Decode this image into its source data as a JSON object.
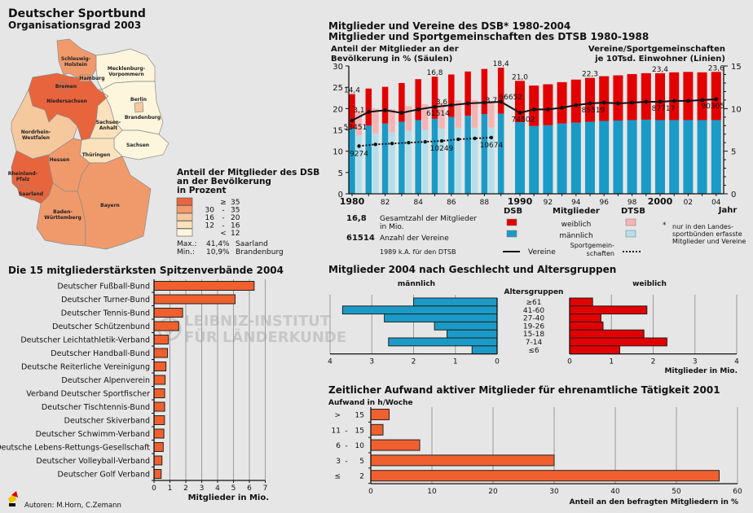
{
  "map": {
    "title": "Deutscher Sportbund",
    "subtitle": "Organisationsgrad 2003",
    "legend_title": [
      "Anteil der Mitglieder des DSB",
      "an der Bevölkerung",
      "in Prozent"
    ],
    "classes": [
      {
        "range_low": "",
        "sep": "≥",
        "range_high": "35",
        "color": "#e8643c"
      },
      {
        "range_low": "30",
        "sep": "-",
        "range_high": "35",
        "color": "#f09a6c"
      },
      {
        "range_low": "16",
        "sep": "-",
        "range_high": "20",
        "color": "#f6c89e"
      },
      {
        "range_low": "12",
        "sep": "-",
        "range_high": "16",
        "color": "#fbe2bd"
      },
      {
        "range_low": "",
        "sep": "<",
        "range_high": "12",
        "color": "#fdf6dc"
      }
    ],
    "max_label": "Max.:",
    "max_value": "41,4%",
    "max_state": "Saarland",
    "min_label": "Min.:",
    "min_value": "10,9%",
    "min_state": "Brandenburg",
    "states": [
      {
        "name": "Schleswig-Holstein",
        "label": [
          "Schleswig-",
          "Holstein"
        ],
        "class": 1
      },
      {
        "name": "Hamburg",
        "label": [
          "Hamburg"
        ],
        "class": 1
      },
      {
        "name": "Bremen",
        "label": [
          "Bremen"
        ],
        "class": 0
      },
      {
        "name": "Niedersachsen",
        "label": [
          "Niedersachsen"
        ],
        "class": 0
      },
      {
        "name": "Mecklenburg-Vorpommern",
        "label": [
          "Mecklenburg-",
          "Vorpommern"
        ],
        "class": 4
      },
      {
        "name": "Berlin",
        "label": [
          "Berlin"
        ],
        "class": 2
      },
      {
        "name": "Brandenburg",
        "label": [
          "Brandenburg"
        ],
        "class": 4
      },
      {
        "name": "Sachsen-Anhalt",
        "label": [
          "Sachsen-",
          "Anhalt"
        ],
        "class": 3
      },
      {
        "name": "Sachsen",
        "label": [
          "Sachsen"
        ],
        "class": 4
      },
      {
        "name": "Thüringen",
        "label": [
          "Thüringen"
        ],
        "class": 3
      },
      {
        "name": "Nordrhein-Westfalen",
        "label": [
          "Nordrhein-",
          "Westfalen"
        ],
        "class": 2
      },
      {
        "name": "Hessen",
        "label": [
          "Hessen"
        ],
        "class": 1
      },
      {
        "name": "Rheinland-Pfalz",
        "label": [
          "Rheinland-",
          "Pfalz"
        ],
        "class": 0
      },
      {
        "name": "Saarland",
        "label": [
          "Saarland"
        ],
        "class": 0
      },
      {
        "name": "Baden-Württemberg",
        "label": [
          "Baden-",
          "Württemberg"
        ],
        "class": 1
      },
      {
        "name": "Bayern",
        "label": [
          "Bayern"
        ],
        "class": 1
      }
    ]
  },
  "watermark": {
    "line1": "LEIBNIZ-INSTITUT",
    "line2": "FÜR LÄNDERKUNDE",
    "symbol": "©"
  },
  "footer": {
    "authors": "Autoren: M.Horn, C.Zemann",
    "logo_icon": "ifl-logo-icon"
  },
  "chart_data": [
    {
      "id": "members_clubs",
      "type": "bar",
      "title": [
        "Mitglieder und Vereine des DSB* 1980-2004",
        "Mitglieder und Sportgemeinschaften des DTSB 1980-1988"
      ],
      "ylabel_left": [
        "Anteil der Mitglieder an der",
        "Bevölkerung in % (Säulen)"
      ],
      "ylabel_right": [
        "Vereine/Sportgemeinschaften",
        "je 10Tsd. Einwohner (Linien)"
      ],
      "xlabel": "Jahr",
      "ylim_left": [
        0,
        30
      ],
      "yticks_left": [
        0,
        5,
        10,
        15,
        20,
        25,
        30
      ],
      "ylim_right": [
        0,
        15
      ],
      "yticks_right": [
        0,
        5,
        10,
        15
      ],
      "xtick_labels": [
        {
          "year": 1980,
          "text": "1980",
          "bold": true
        },
        {
          "year": 1982,
          "text": "82"
        },
        {
          "year": 1984,
          "text": "84"
        },
        {
          "year": 1986,
          "text": "86"
        },
        {
          "year": 1988,
          "text": "88"
        },
        {
          "year": 1990,
          "text": "1990",
          "bold": true
        },
        {
          "year": 1992,
          "text": "92"
        },
        {
          "year": 1994,
          "text": "94"
        },
        {
          "year": 1996,
          "text": "96"
        },
        {
          "year": 1998,
          "text": "98"
        },
        {
          "year": 2000,
          "text": "2000",
          "bold": true
        },
        {
          "year": 2002,
          "text": "02"
        },
        {
          "year": 2004,
          "text": "04"
        }
      ],
      "colors": {
        "dsb_female": "#e30000",
        "dsb_male": "#1a9bc7",
        "dtsb_female": "#f5b4b4",
        "dtsb_male": "#b4dfea"
      },
      "dsb": {
        "years": [
          1980,
          1981,
          1982,
          1983,
          1984,
          1985,
          1986,
          1987,
          1988,
          1989,
          1990,
          1991,
          1992,
          1993,
          1994,
          1995,
          1996,
          1997,
          1998,
          1999,
          2000,
          2001,
          2002,
          2003,
          2004
        ],
        "male_pct": [
          15.3,
          16.0,
          16.5,
          16.9,
          17.3,
          17.6,
          18.0,
          18.3,
          18.7,
          18.8,
          16.8,
          15.9,
          16.1,
          16.5,
          16.7,
          16.9,
          17.1,
          17.2,
          17.3,
          17.4,
          17.3,
          17.3,
          17.3,
          17.3,
          17.3
        ],
        "total_pct": [
          23.4,
          24.7,
          25.1,
          26.0,
          26.9,
          27.5,
          28.0,
          28.7,
          29.3,
          29.6,
          26.5,
          25.4,
          25.7,
          26.2,
          26.8,
          27.2,
          27.6,
          27.8,
          28.1,
          28.3,
          28.3,
          28.5,
          28.6,
          28.5,
          28.6
        ],
        "clubs_per_10k": [
          8.6,
          9.6,
          9.8,
          9.5,
          9.9,
          10.2,
          10.4,
          10.6,
          10.7,
          10.8,
          9.5,
          9.9,
          9.9,
          10.1,
          10.4,
          10.6,
          10.7,
          10.6,
          10.7,
          10.8,
          10.8,
          10.9,
          10.9,
          11.0,
          11.1
        ]
      },
      "dtsb": {
        "years": [
          1980,
          1981,
          1982,
          1983,
          1984,
          1985,
          1986,
          1987,
          1988
        ],
        "male_pct": [
          13.7,
          14.1,
          14.4,
          14.8,
          15.0,
          15.3,
          15.5,
          15.5,
          15.5
        ],
        "total_pct": [
          19.5,
          20.0,
          19.9,
          20.6,
          21.0,
          21.4,
          21.9,
          22.0,
          21.8
        ],
        "sg_per_10k": [
          5.6,
          5.8,
          5.9,
          6.0,
          6.1,
          6.2,
          6.4,
          6.5,
          6.6
        ]
      },
      "annotations": {
        "dsb_members_mio": [
          {
            "year": 1980,
            "text": "14,4"
          },
          {
            "year": 1985,
            "text": "16,8"
          },
          {
            "year": 1989,
            "text": "18,4"
          },
          {
            "year": 1990,
            "text": "21,0"
          },
          {
            "year": 1995,
            "text": "22,3"
          },
          {
            "year": 2000,
            "text": "23,4"
          },
          {
            "year": 2004,
            "text": "23,6"
          }
        ],
        "dtsb_members_mio": [
          {
            "year": 1980,
            "text": "3,1"
          },
          {
            "year": 1985,
            "text": "3,6"
          },
          {
            "year": 1988,
            "text": "3,7"
          }
        ],
        "dsb_clubs": [
          {
            "year": 1980,
            "text": "53451"
          },
          {
            "year": 1985,
            "text": "61514"
          },
          {
            "year": 1989,
            "text": "66652"
          },
          {
            "year": 1990,
            "text": "74802"
          },
          {
            "year": 1995,
            "text": "85519"
          },
          {
            "year": 2000,
            "text": "87717"
          },
          {
            "year": 2004,
            "text": "90305"
          }
        ],
        "dtsb_sg": [
          {
            "year": 1980,
            "text": "9274"
          },
          {
            "year": 1985,
            "text": "10249"
          },
          {
            "year": 1988,
            "text": "10674"
          }
        ]
      },
      "legend": {
        "example_members": "16,8",
        "example_members_text": [
          "Gesamtzahl der Mitglieder",
          "in Mio."
        ],
        "example_clubs": "61514",
        "example_clubs_text": "Anzahl der Vereine",
        "note_1989": "1989 k.A. für den DTSB",
        "dsb": "DSB",
        "members": "Mitglieder",
        "dtsb": "DTSB",
        "female": "weiblich",
        "male": "männlich",
        "clubs_line": "Vereine",
        "sg_line": [
          "Sportgemein-",
          "schaften"
        ],
        "footnote_mark": "*",
        "footnote": [
          "nur in den Landes-",
          "sportbünden erfasste",
          "Mitglieder und Vereine"
        ]
      }
    },
    {
      "id": "federations",
      "type": "bar",
      "orientation": "horizontal",
      "title": "Die 15 mitgliederstärksten Spitzenverbände 2004",
      "xlabel": "Mitglieder in Mio.",
      "xlim": [
        0,
        7
      ],
      "xticks": [
        0,
        1,
        2,
        3,
        4,
        5,
        6,
        7
      ],
      "color": "#f0602e",
      "categories": [
        "Deutscher Fußball-Bund",
        "Deutscher Turner-Bund",
        "Deutscher Tennis-Bund",
        "Deutscher Schützenbund",
        "Deutscher Leichtathletik-Verband",
        "Deutscher Handball-Bund",
        "Deutsche Reiterliche Vereinigung",
        "Deutscher Alpenverein",
        "Verband Deutscher Sportfischer",
        "Deutscher Tischtennis-Bund",
        "Deutscher Skiverband",
        "Deutscher Schwimm-Verband",
        "Deutsche Lebens-Rettungs-Gesellschaft",
        "Deutscher Volleyball-Verband",
        "Deutscher Golf Verband"
      ],
      "values": [
        6.3,
        5.1,
        1.8,
        1.55,
        0.9,
        0.85,
        0.75,
        0.7,
        0.67,
        0.67,
        0.66,
        0.62,
        0.58,
        0.5,
        0.45
      ]
    },
    {
      "id": "age_gender",
      "type": "bar",
      "orientation": "horizontal-pyramid",
      "title": "Mitglieder 2004 nach Geschlecht und Altersgruppen",
      "center_label": "Altersgruppen",
      "xlabel": "Mitglieder in Mio.",
      "xlim": [
        0,
        4
      ],
      "xticks": [
        0,
        1,
        2,
        3,
        4
      ],
      "categories": [
        "≥61",
        "41-60",
        "27-40",
        "19-26",
        "15-18",
        "7-14",
        "≤6"
      ],
      "series": [
        {
          "name": "männlich",
          "color": "#1a9bc7",
          "values": [
            2.0,
            3.7,
            2.7,
            1.5,
            1.2,
            2.6,
            0.6
          ]
        },
        {
          "name": "weiblich",
          "color": "#e30000",
          "values": [
            0.55,
            1.85,
            0.75,
            0.8,
            1.78,
            2.33,
            1.2
          ]
        }
      ]
    },
    {
      "id": "volunteer_time",
      "type": "bar",
      "orientation": "horizontal",
      "title": "Zeitlicher Aufwand aktiver Mitglieder für ehrenamtliche Tätigkeit 2001",
      "ylabel": "Aufwand in h/Woche",
      "xlabel": "Anteil an den befragten Mitgliedern in %",
      "xlim": [
        0,
        60
      ],
      "xticks": [
        0,
        10,
        20,
        30,
        40,
        50,
        60
      ],
      "color": "#f0602e",
      "categories": [
        {
          "a": ">",
          "b": "",
          "c": "15"
        },
        {
          "a": "11",
          "b": "-",
          "c": "15"
        },
        {
          "a": "6",
          "b": "-",
          "c": "10"
        },
        {
          "a": "3",
          "b": "-",
          "c": "5"
        },
        {
          "a": "≤",
          "b": "",
          "c": "2"
        }
      ],
      "values": [
        3,
        2,
        8,
        30,
        57
      ]
    }
  ]
}
